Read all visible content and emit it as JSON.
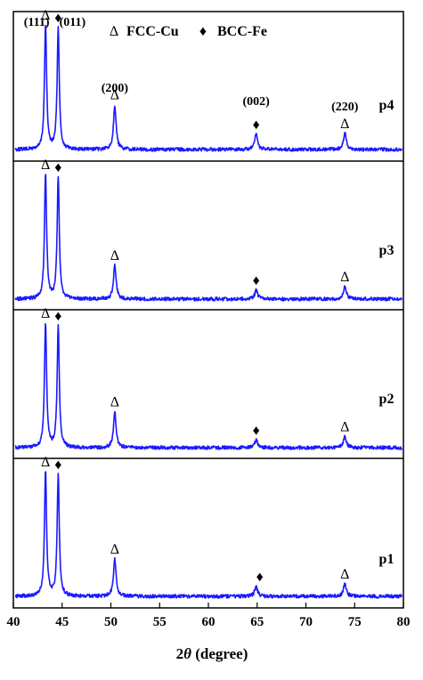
{
  "chart_data": {
    "type": "line",
    "xlabel_prefix": "2",
    "xlabel_symbol": "θ",
    "xlabel_suffix": " (degree)",
    "xlim": [
      40,
      80
    ],
    "x_ticks": [
      40,
      45,
      50,
      55,
      60,
      65,
      70,
      75,
      80
    ],
    "legend": {
      "fcc_symbol": "Δ",
      "fcc_label": "FCC-Cu",
      "bcc_symbol": "♦",
      "bcc_label": "BCC-Fe"
    },
    "colors": {
      "line": "#1a1aff",
      "axis": "#000000"
    },
    "peaks": [
      {
        "index": "(111)",
        "phase": "FCC-Cu",
        "two_theta": 43.3,
        "width": 0.13
      },
      {
        "index": "(011)",
        "phase": "BCC-Fe",
        "two_theta": 44.6,
        "width": 0.13
      },
      {
        "index": "(200)",
        "phase": "FCC-Cu",
        "two_theta": 50.4,
        "width": 0.16
      },
      {
        "index": "(002)",
        "phase": "BCC-Fe",
        "two_theta": 64.9,
        "width": 0.18
      },
      {
        "index": "(220)",
        "phase": "FCC-Cu",
        "two_theta": 74.0,
        "width": 0.18
      }
    ],
    "series": [
      {
        "name": "p4",
        "relative_intensities": [
          1.0,
          0.98,
          0.36,
          0.12,
          0.13
        ]
      },
      {
        "name": "p3",
        "relative_intensities": [
          1.0,
          0.98,
          0.27,
          0.07,
          0.1
        ]
      },
      {
        "name": "p2",
        "relative_intensities": [
          1.0,
          0.98,
          0.29,
          0.06,
          0.09
        ]
      },
      {
        "name": "p1",
        "relative_intensities": [
          1.0,
          0.98,
          0.3,
          0.08,
          0.1
        ]
      }
    ]
  }
}
